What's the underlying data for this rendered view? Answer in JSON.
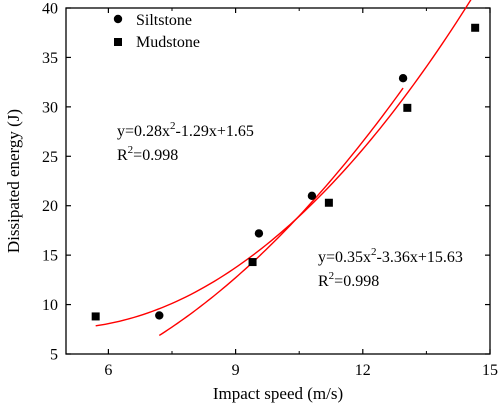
{
  "chart_data": {
    "type": "scatter",
    "title": "",
    "xlabel": "Impact speed (m/s)",
    "ylabel": "Dissipated energy (J)",
    "xlim": [
      5,
      15
    ],
    "ylim": [
      5,
      40
    ],
    "xticks": [
      6,
      9,
      12,
      15
    ],
    "yticks": [
      5,
      10,
      15,
      20,
      25,
      30,
      35,
      40
    ],
    "legend_position": "top-left",
    "grid": false,
    "fit_color": "#ff0000",
    "marker_color": "#000000",
    "series": [
      {
        "name": "Siltstone",
        "marker": "circle",
        "x": [
          7.2,
          9.55,
          10.8,
          12.95
        ],
        "y": [
          8.9,
          17.2,
          21.0,
          32.9
        ],
        "fit": {
          "equation_prefix": "y=0.28x",
          "equation_exp": "2",
          "equation_suffix": "-1.29x+1.65",
          "r2_prefix": "R",
          "r2_exp": "2",
          "r2_suffix": "=0.998",
          "a": 0.28,
          "b": -1.29,
          "c": 1.65,
          "x_start": 7.2,
          "x_end": 12.95
        }
      },
      {
        "name": "Mudstone",
        "marker": "square",
        "x": [
          5.7,
          9.4,
          11.2,
          13.05,
          14.65
        ],
        "y": [
          8.8,
          14.3,
          20.3,
          29.9,
          38.0
        ],
        "fit": {
          "equation_prefix": "y=0.35x",
          "equation_exp": "2",
          "equation_suffix": "-3.36x+15.63",
          "r2_prefix": "R",
          "r2_exp": "2",
          "r2_suffix": "=0.998",
          "a": 0.35,
          "b": -3.36,
          "c": 15.63,
          "x_start": 5.7,
          "x_end": 14.65
        }
      }
    ]
  }
}
